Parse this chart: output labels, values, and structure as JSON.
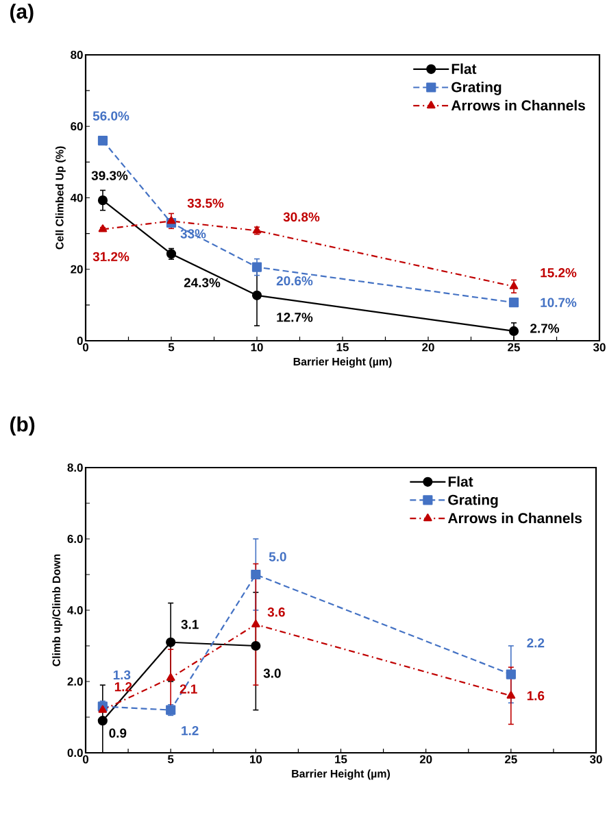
{
  "chart_data": [
    {
      "type": "line",
      "title": "(a)",
      "xlabel": "Barrier Height (µm)",
      "ylabel": "Cell Climbed Up (%)",
      "xlim": [
        0,
        30
      ],
      "ylim": [
        0,
        80
      ],
      "xticks": [
        0,
        {
          "value": 2.5,
          "label": null
        },
        5,
        {
          "value": 7.5,
          "label": null
        },
        10,
        {
          "value": 12.5,
          "label": null
        },
        15,
        {
          "value": 17.5,
          "label": null
        },
        20,
        {
          "value": 22.5,
          "label": null
        },
        25,
        {
          "value": 27.5,
          "label": null
        },
        30
      ],
      "yticks": [
        0,
        {
          "value": 10,
          "label": null
        },
        20,
        {
          "value": 30,
          "label": null
        },
        40,
        {
          "value": 50,
          "label": null
        },
        60,
        {
          "value": 70,
          "label": null
        },
        80
      ],
      "legend": "top right",
      "grid": false,
      "series": [
        {
          "name": "Flat",
          "color": "#000000",
          "marker": "circle",
          "line_style": "solid",
          "x": [
            1,
            5,
            10,
            25
          ],
          "values": [
            39.3,
            24.3,
            12.7,
            2.7
          ],
          "errors": [
            2.8,
            1.5,
            8.5,
            [
              0,
              5.0
            ]
          ],
          "value_labels": [
            "39.3%",
            "24.3%",
            "12.7%",
            "2.7%"
          ]
        },
        {
          "name": "Grating",
          "color": "#4472c4",
          "marker": "square",
          "line_style": "dashed",
          "x": [
            1,
            5,
            10,
            25
          ],
          "values": [
            56.0,
            33,
            20.6,
            10.7
          ],
          "errors": [
            0.5,
            1.0,
            2.3,
            0.5
          ],
          "value_labels": [
            "56.0%",
            "33%",
            "20.6%",
            "10.7%"
          ]
        },
        {
          "name": "Arrows in Channels",
          "color": "#c00000",
          "marker": "triangle",
          "line_style": "dashdot",
          "x": [
            1,
            5,
            10,
            25
          ],
          "values": [
            31.2,
            33.5,
            30.8,
            15.2
          ],
          "errors": [
            0.5,
            2.1,
            1.0,
            1.8
          ],
          "value_labels": [
            "31.2%",
            "33.5%",
            "30.8%",
            "15.2%"
          ]
        }
      ]
    },
    {
      "type": "line",
      "title": "(b)",
      "xlabel": "Barrier Height (µm)",
      "ylabel": "Climb up/Climb Down",
      "xlim": [
        0,
        30
      ],
      "ylim": [
        0,
        8
      ],
      "xticks": [
        0,
        {
          "value": 2.5,
          "label": null
        },
        5,
        {
          "value": 7.5,
          "label": null
        },
        10,
        {
          "value": 12.5,
          "label": null
        },
        15,
        {
          "value": 17.5,
          "label": null
        },
        20,
        {
          "value": 22.5,
          "label": null
        },
        25,
        {
          "value": 27.5,
          "label": null
        },
        30
      ],
      "yticks": [
        {
          "value": 0,
          "label": "0.0"
        },
        {
          "value": 1,
          "label": null
        },
        {
          "value": 2,
          "label": "2.0"
        },
        {
          "value": 3,
          "label": null
        },
        {
          "value": 4,
          "label": "4.0"
        },
        {
          "value": 5,
          "label": null
        },
        {
          "value": 6,
          "label": "6.0"
        },
        {
          "value": 7,
          "label": null
        },
        {
          "value": 8,
          "label": "8.0"
        }
      ],
      "legend": "top right",
      "grid": false,
      "series": [
        {
          "name": "Flat",
          "color": "#000000",
          "marker": "circle",
          "line_style": "solid",
          "x": [
            1,
            5,
            10
          ],
          "values": [
            0.9,
            3.1,
            3.0
          ],
          "errors": [
            [
              0,
              1.9
            ],
            1.1,
            [
              1.2,
              4.5
            ]
          ],
          "value_labels": [
            "0.9",
            "3.1",
            "3.0"
          ]
        },
        {
          "name": "Grating",
          "color": "#4472c4",
          "marker": "square",
          "line_style": "dashed",
          "x": [
            1,
            5,
            10,
            25
          ],
          "values": [
            1.3,
            1.2,
            5.0,
            2.2
          ],
          "errors": [
            0.15,
            0.15,
            1.0,
            0.8
          ],
          "value_labels": [
            "1.3",
            "1.2",
            "5.0",
            "2.2"
          ]
        },
        {
          "name": "Arrows in Channels",
          "color": "#c00000",
          "marker": "triangle",
          "line_style": "dashdot",
          "x": [
            1,
            5,
            10,
            25
          ],
          "values": [
            1.2,
            2.1,
            3.6,
            1.6
          ],
          "errors": [
            null,
            0.8,
            1.7,
            0.8
          ],
          "value_labels": [
            "1.2",
            "2.1",
            "3.6",
            "1.6"
          ]
        }
      ]
    }
  ]
}
